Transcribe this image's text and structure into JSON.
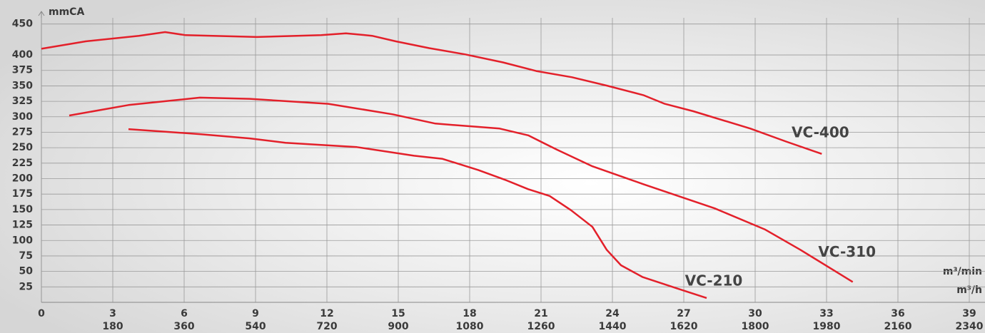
{
  "chart_data": {
    "type": "line",
    "y_label": "mmCA",
    "x_label": "m³/min",
    "x2_label": "m³/h",
    "xlim": [
      0,
      39
    ],
    "xticks": [
      0,
      3,
      6,
      9,
      12,
      15,
      18,
      21,
      24,
      27,
      30,
      33,
      36,
      39
    ],
    "x2ticks": [
      180,
      360,
      540,
      720,
      900,
      1080,
      1260,
      1440,
      1620,
      1800,
      1980,
      2160,
      2340
    ],
    "ylim": [
      0,
      460
    ],
    "yticks": [
      25,
      50,
      75,
      100,
      125,
      150,
      175,
      200,
      225,
      250,
      275,
      300,
      325,
      350,
      375,
      400,
      450
    ],
    "grid": true,
    "series": [
      {
        "name": "VC-400",
        "color": "#e3202a",
        "x": [
          0,
          1.86,
          4.1,
          5.2,
          6.06,
          9.06,
          11.76,
          12.8,
          13.9,
          14.9,
          16.3,
          17.8,
          19.4,
          20.8,
          22.3,
          23.8,
          25.3,
          26.2,
          27.4,
          29.8,
          31.3,
          32.8
        ],
        "values": [
          410,
          422,
          431,
          437,
          432,
          429,
          432,
          435,
          431,
          422,
          411,
          401,
          388,
          374,
          364,
          350,
          335,
          321,
          309,
          281,
          260,
          240
        ]
      },
      {
        "name": "VC-310",
        "color": "#e3202a",
        "x": [
          1.17,
          3.66,
          6.66,
          8.76,
          12.06,
          14.76,
          16.56,
          19.26,
          20.46,
          21.66,
          23.16,
          25.3,
          28.3,
          30.4,
          31.9,
          34.1
        ],
        "values": [
          302,
          319,
          331,
          329,
          321,
          304,
          289,
          281,
          270,
          247,
          220,
          191,
          152,
          118,
          85,
          33
        ]
      },
      {
        "name": "VC-210",
        "color": "#e3202a",
        "x": [
          3.66,
          6.66,
          8.76,
          10.26,
          13.26,
          15.66,
          16.86,
          18.36,
          19.56,
          20.46,
          21.36,
          22.26,
          23.16,
          23.76,
          24.36,
          25.26,
          26.76,
          27.96
        ],
        "values": [
          280,
          272,
          265,
          258,
          251,
          237,
          232,
          214,
          197,
          183,
          172,
          149,
          122,
          85,
          60,
          41,
          22,
          7
        ]
      }
    ]
  }
}
